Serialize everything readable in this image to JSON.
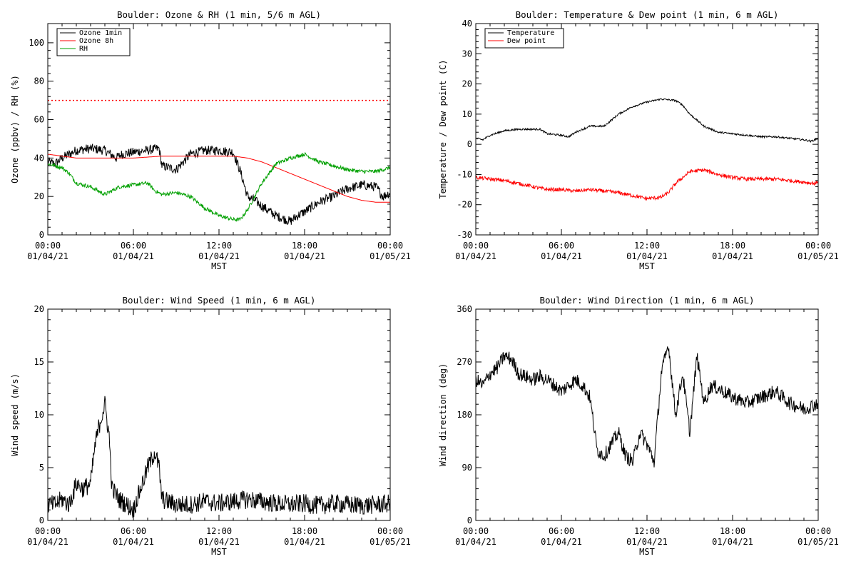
{
  "chart_data": [
    {
      "type": "line",
      "title": "Boulder: Ozone & RH (1 min, 5/6 m AGL)",
      "ylabel": "Ozone (ppbv) / RH (%)",
      "xlabel": "MST",
      "ylim": [
        0,
        110
      ],
      "yticks": [
        0,
        20,
        40,
        60,
        80,
        100
      ],
      "xlim": [
        0,
        24
      ],
      "xticks": [
        0,
        6,
        12,
        18,
        24
      ],
      "xtick_labels": [
        [
          "00:00",
          "01/04/21"
        ],
        [
          "06:00",
          "01/04/21"
        ],
        [
          "12:00",
          "01/04/21"
        ],
        [
          "18:00",
          "01/04/21"
        ],
        [
          "00:00",
          "01/05/21"
        ]
      ],
      "legend_position": "top-left",
      "reference_lines": [
        {
          "y": 70,
          "color": "#ff0000",
          "style": "dotted"
        }
      ],
      "series": [
        {
          "name": "Ozone 1min",
          "color": "#000000",
          "noise": 2.5,
          "x": [
            0,
            0.5,
            1,
            1.5,
            2,
            3,
            4,
            4.8,
            5.2,
            6,
            7,
            7.8,
            8,
            9,
            10,
            11,
            12,
            13,
            13.5,
            14,
            14.5,
            15,
            16,
            17,
            17.5,
            18,
            19,
            20,
            21,
            22,
            23,
            23.5,
            24
          ],
          "y": [
            38,
            37,
            40,
            42,
            44,
            45,
            44,
            40,
            42,
            43,
            44,
            45,
            36,
            34,
            42,
            44,
            44,
            43,
            33,
            20,
            18,
            15,
            10,
            7,
            10,
            12,
            17,
            20,
            24,
            26,
            25,
            20,
            22
          ]
        },
        {
          "name": "Ozone 8h",
          "color": "#ff0000",
          "noise": 0,
          "x": [
            0,
            1,
            2,
            3,
            4,
            6,
            8,
            10,
            12,
            13,
            14,
            15,
            16,
            17,
            18,
            19,
            20,
            21,
            22,
            23,
            24
          ],
          "y": [
            42,
            41,
            40,
            40,
            40,
            40,
            41,
            41,
            41,
            41,
            40,
            38,
            35,
            32,
            29,
            26,
            23,
            20,
            18,
            17,
            17
          ]
        },
        {
          "name": "RH",
          "color": "#00a000",
          "noise": 1.0,
          "x": [
            0,
            0.5,
            1,
            1.5,
            2,
            3,
            4,
            5,
            6,
            7,
            7.5,
            8,
            9,
            10,
            11,
            12,
            13,
            13.5,
            14,
            14.5,
            15,
            16,
            17,
            18,
            19,
            20,
            21,
            22,
            23,
            24
          ],
          "y": [
            37,
            36,
            35,
            32,
            27,
            25,
            21,
            25,
            26,
            27,
            23,
            21,
            22,
            20,
            14,
            10,
            8,
            8,
            13,
            20,
            27,
            37,
            40,
            42,
            38,
            36,
            34,
            33,
            33,
            35
          ]
        }
      ]
    },
    {
      "type": "line",
      "title": "Boulder: Temperature & Dew point (1 min, 6 m AGL)",
      "ylabel": "Temperature / Dew point (C)",
      "xlabel": "MST",
      "ylim": [
        -30,
        40
      ],
      "yticks": [
        -30,
        -20,
        -10,
        0,
        10,
        20,
        30,
        40
      ],
      "xlim": [
        0,
        24
      ],
      "xticks": [
        0,
        6,
        12,
        18,
        24
      ],
      "xtick_labels": [
        [
          "00:00",
          "01/04/21"
        ],
        [
          "06:00",
          "01/04/21"
        ],
        [
          "12:00",
          "01/04/21"
        ],
        [
          "18:00",
          "01/04/21"
        ],
        [
          "00:00",
          "01/05/21"
        ]
      ],
      "legend_position": "top-left",
      "reference_lines": [],
      "series": [
        {
          "name": "Temperature",
          "color": "#000000",
          "noise": 0.3,
          "x": [
            0,
            0.5,
            1,
            2,
            3,
            4,
            4.5,
            5,
            6,
            6.5,
            7,
            8,
            9,
            10,
            11,
            12,
            13,
            14,
            14.5,
            15,
            16,
            17,
            18,
            19,
            20,
            21,
            22,
            23,
            23.5,
            24
          ],
          "y": [
            2,
            1.5,
            3,
            4.5,
            5,
            5,
            5,
            3.5,
            3,
            2.5,
            4,
            6,
            6,
            10,
            12.5,
            14,
            15,
            14.5,
            13,
            10,
            6,
            4,
            3.5,
            3,
            2.5,
            2.5,
            2,
            1.5,
            1,
            2
          ]
        },
        {
          "name": "Dew point",
          "color": "#ff0000",
          "noise": 0.6,
          "x": [
            0,
            1,
            2,
            3,
            4,
            5,
            6,
            7,
            8,
            9,
            10,
            11,
            12,
            13,
            13.5,
            14,
            14.5,
            15,
            16,
            17,
            18,
            19,
            20,
            21,
            22,
            23,
            23.8,
            24
          ],
          "y": [
            -11,
            -11.5,
            -12,
            -13,
            -14,
            -15,
            -15,
            -15.5,
            -15,
            -15.5,
            -16,
            -17,
            -18,
            -17.5,
            -16,
            -13,
            -11,
            -9,
            -8.5,
            -10,
            -11,
            -11.5,
            -11.5,
            -11.5,
            -12,
            -12.5,
            -13,
            -12
          ]
        }
      ]
    },
    {
      "type": "line",
      "title": "Boulder: Wind Speed (1 min, 6 m AGL)",
      "ylabel": "Wind speed (m/s)",
      "xlabel": "MST",
      "ylim": [
        0,
        20
      ],
      "yticks": [
        0,
        5,
        10,
        15,
        20
      ],
      "xlim": [
        0,
        24
      ],
      "xticks": [
        0,
        6,
        12,
        18,
        24
      ],
      "xtick_labels": [
        [
          "00:00",
          "01/04/21"
        ],
        [
          "06:00",
          "01/04/21"
        ],
        [
          "12:00",
          "01/04/21"
        ],
        [
          "18:00",
          "01/04/21"
        ],
        [
          "00:00",
          "01/05/21"
        ]
      ],
      "legend_position": "none",
      "reference_lines": [],
      "series": [
        {
          "name": "",
          "color": "#000000",
          "noise": 0.9,
          "x": [
            0,
            0.5,
            1,
            1.5,
            2,
            2.5,
            3,
            3.3,
            3.6,
            4,
            4.3,
            4.5,
            5,
            5.5,
            6,
            6.5,
            7,
            7.5,
            7.8,
            8,
            9,
            10,
            11,
            12,
            13,
            14,
            15,
            16,
            17,
            18,
            19,
            20,
            21,
            22,
            23,
            24
          ],
          "y": [
            1.5,
            1.5,
            2,
            1.5,
            3.5,
            3,
            3.5,
            7,
            9,
            11,
            8,
            3,
            2,
            1.5,
            1,
            3,
            5,
            6.5,
            5,
            2,
            1.5,
            1.5,
            1.8,
            1.6,
            1.8,
            2,
            1.8,
            1.6,
            1.5,
            1.6,
            1.4,
            1.6,
            1.5,
            1.4,
            1.5,
            1.6
          ]
        }
      ]
    },
    {
      "type": "line",
      "title": "Boulder: Wind Direction (1 min, 6 m AGL)",
      "ylabel": "Wind direction (deg)",
      "xlabel": "MST",
      "ylim": [
        0,
        360
      ],
      "yticks": [
        0,
        90,
        180,
        270,
        360
      ],
      "xlim": [
        0,
        24
      ],
      "xticks": [
        0,
        6,
        12,
        18,
        24
      ],
      "xtick_labels": [
        [
          "00:00",
          "01/04/21"
        ],
        [
          "06:00",
          "01/04/21"
        ],
        [
          "12:00",
          "01/04/21"
        ],
        [
          "18:00",
          "01/04/21"
        ],
        [
          "00:00",
          "01/05/21"
        ]
      ],
      "legend_position": "none",
      "reference_lines": [],
      "series": [
        {
          "name": "",
          "color": "#000000",
          "noise": 12,
          "x": [
            0,
            0.5,
            1,
            1.5,
            2,
            2.5,
            3,
            4,
            4.5,
            5,
            5.5,
            6,
            7,
            7.5,
            8,
            8.5,
            9,
            9.5,
            10,
            10.5,
            11,
            11.5,
            12,
            12.5,
            13,
            13.5,
            14,
            14.5,
            15,
            15.5,
            16,
            16.5,
            17,
            18,
            19,
            20,
            21,
            22,
            23,
            24
          ],
          "y": [
            240,
            230,
            250,
            260,
            280,
            275,
            250,
            240,
            245,
            240,
            230,
            220,
            240,
            230,
            210,
            120,
            110,
            130,
            150,
            110,
            100,
            150,
            130,
            100,
            250,
            300,
            180,
            250,
            150,
            280,
            200,
            230,
            225,
            210,
            200,
            210,
            220,
            200,
            190,
            200
          ]
        }
      ]
    }
  ]
}
